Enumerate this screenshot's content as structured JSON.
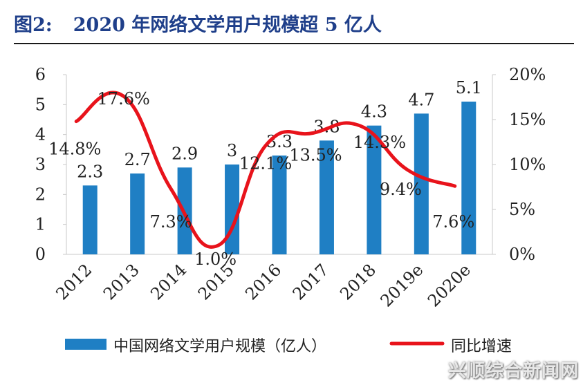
{
  "figure": {
    "label": "图2:",
    "title": "2020 年网络文学用户规模超 5 亿人"
  },
  "watermark": "兴顺综合新闻网",
  "chart_data": {
    "type": "bar",
    "categories": [
      "2012",
      "2013",
      "2014",
      "2015",
      "2016",
      "2017",
      "2018",
      "2019e",
      "2020e"
    ],
    "series": [
      {
        "name": "中国网络文学用户规模（亿人）",
        "type": "bar",
        "axis": "left",
        "values": [
          2.3,
          2.7,
          2.9,
          3,
          3.3,
          3.8,
          4.3,
          4.7,
          5.1
        ],
        "labels": [
          "2.3",
          "2.7",
          "2.9",
          "3",
          "3.3",
          "3.8",
          "4.3",
          "4.7",
          "5.1"
        ],
        "color": "#1f7fc4"
      },
      {
        "name": "同比增速",
        "type": "line",
        "axis": "right",
        "values": [
          14.8,
          17.6,
          7.3,
          1.0,
          12.1,
          13.5,
          14.3,
          9.4,
          7.6
        ],
        "labels": [
          "14.8%",
          "17.6%",
          "7.3%",
          "1.0%",
          "12.1%",
          "13.5%",
          "14.3%",
          "9.4%",
          "7.6%"
        ],
        "color": "#e8131b"
      }
    ],
    "left_axis": {
      "ylim": [
        0,
        6
      ],
      "ticks": [
        "0",
        "1",
        "2",
        "3",
        "4",
        "5",
        "6"
      ]
    },
    "right_axis": {
      "ylim": [
        0,
        20
      ],
      "ticks": [
        "0%",
        "5%",
        "10%",
        "15%",
        "20%"
      ]
    },
    "grid": false,
    "legend": "bottom"
  }
}
